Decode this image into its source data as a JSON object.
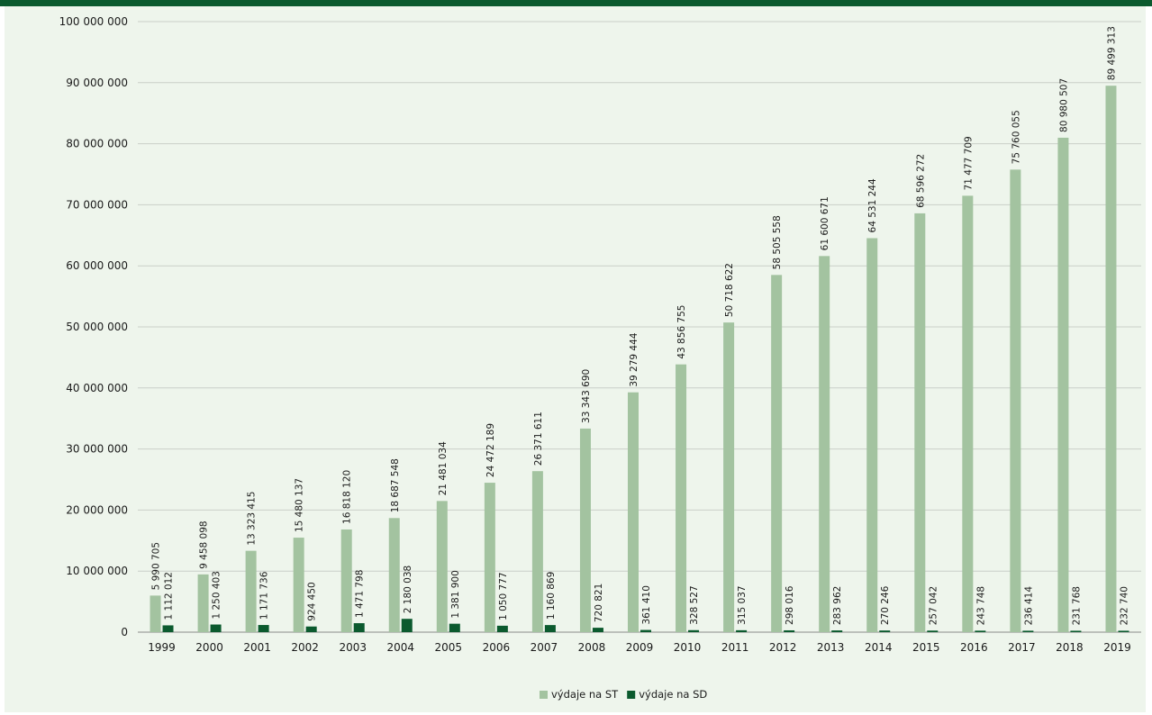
{
  "chart_data": {
    "type": "bar",
    "categories": [
      "1999",
      "2000",
      "2001",
      "2002",
      "2003",
      "2004",
      "2005",
      "2006",
      "2007",
      "2008",
      "2009",
      "2010",
      "2011",
      "2012",
      "2013",
      "2014",
      "2015",
      "2016",
      "2017",
      "2018",
      "2019"
    ],
    "series": [
      {
        "name": "výdaje na ST",
        "color": "#a3c3a0",
        "values": [
          5990705,
          9458098,
          13323415,
          15480137,
          16818120,
          18687548,
          21481034,
          24472189,
          26371611,
          33343690,
          39279444,
          43856755,
          50718622,
          58505558,
          61600671,
          64531244,
          68596272,
          71477709,
          75760055,
          80980507,
          89499313
        ],
        "labels": [
          "5 990 705",
          "9 458 098",
          "13 323 415",
          "15 480 137",
          "16 818 120",
          "18 687 548",
          "21 481 034",
          "24 472 189",
          "26 371 611",
          "33 343 690",
          "39 279 444",
          "43 856 755",
          "50 718 622",
          "58 505 558",
          "61 600 671",
          "64 531 244",
          "68 596 272",
          "71 477 709",
          "75 760 055",
          "80 980 507",
          "89 499 313"
        ]
      },
      {
        "name": "výdaje na SD",
        "color": "#0b5a2e",
        "values": [
          1112012,
          1250403,
          1171736,
          924450,
          1471798,
          2180038,
          1381900,
          1050777,
          1160869,
          720821,
          361410,
          328527,
          315037,
          298016,
          283962,
          270246,
          257042,
          243748,
          236414,
          231768,
          232740
        ],
        "labels": [
          "1 112 012",
          "1 250 403",
          "1 171 736",
          "924 450",
          "1 471 798",
          "2 180 038",
          "1 381 900",
          "1 050 777",
          "1 160 869",
          "720 821",
          "361 410",
          "328 527",
          "315 037",
          "298 016",
          "283 962",
          "270 246",
          "257 042",
          "243 748",
          "236 414",
          "231 768",
          "232 740"
        ]
      }
    ],
    "ylim": [
      0,
      100000000
    ],
    "yticks": [
      0,
      10000000,
      20000000,
      30000000,
      40000000,
      50000000,
      60000000,
      70000000,
      80000000,
      90000000,
      100000000
    ],
    "ytick_labels": [
      "0",
      "10 000 000",
      "20 000 000",
      "30 000 000",
      "40 000 000",
      "50 000 000",
      "60 000 000",
      "70 000 000",
      "80 000 000",
      "90 000 000",
      "100 000 000"
    ],
    "grid": true,
    "legend_position": "bottom-center",
    "title": "",
    "xlabel": "",
    "ylabel": ""
  },
  "colors": {
    "topbar": "#0b5a2e",
    "panel": "#eef5ec",
    "gridline": "#c9cfc8",
    "axis": "#8a8a8a"
  }
}
